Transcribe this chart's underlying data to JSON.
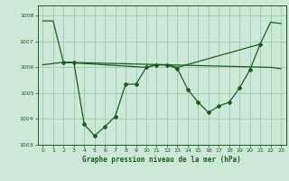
{
  "background_color": "#cce8d8",
  "grid_color": "#99ccb0",
  "line_color": "#1a5c20",
  "xlabel": "Graphe pression niveau de la mer (hPa)",
  "xlabel_color": "#1a5c20",
  "ylim": [
    1003,
    1008.4
  ],
  "xlim": [
    -0.5,
    23.5
  ],
  "yticks": [
    1003,
    1004,
    1005,
    1006,
    1007,
    1008
  ],
  "xticks": [
    0,
    1,
    2,
    3,
    4,
    5,
    6,
    7,
    8,
    9,
    10,
    11,
    12,
    13,
    14,
    15,
    16,
    17,
    18,
    19,
    20,
    21,
    22,
    23
  ],
  "series1_x": [
    2,
    3,
    4,
    5,
    6,
    7,
    8,
    9,
    10,
    11,
    12,
    13,
    14,
    15,
    16,
    17,
    18,
    19,
    20,
    21
  ],
  "series1_y": [
    1006.2,
    1006.2,
    1003.8,
    1003.35,
    1003.7,
    1004.1,
    1005.35,
    1005.35,
    1006.0,
    1006.1,
    1006.1,
    1005.95,
    1005.15,
    1004.65,
    1004.25,
    1004.5,
    1004.65,
    1005.2,
    1005.9,
    1006.9
  ],
  "series2_x": [
    0,
    1,
    2,
    10,
    11,
    12,
    13,
    21,
    22,
    23
  ],
  "series2_y": [
    1007.8,
    1007.8,
    1006.2,
    1006.0,
    1006.1,
    1006.1,
    1006.0,
    1006.9,
    1007.75,
    1007.7
  ],
  "series3_x": [
    0,
    2,
    22,
    23
  ],
  "series3_y": [
    1006.1,
    1006.2,
    1006.0,
    1005.95
  ]
}
